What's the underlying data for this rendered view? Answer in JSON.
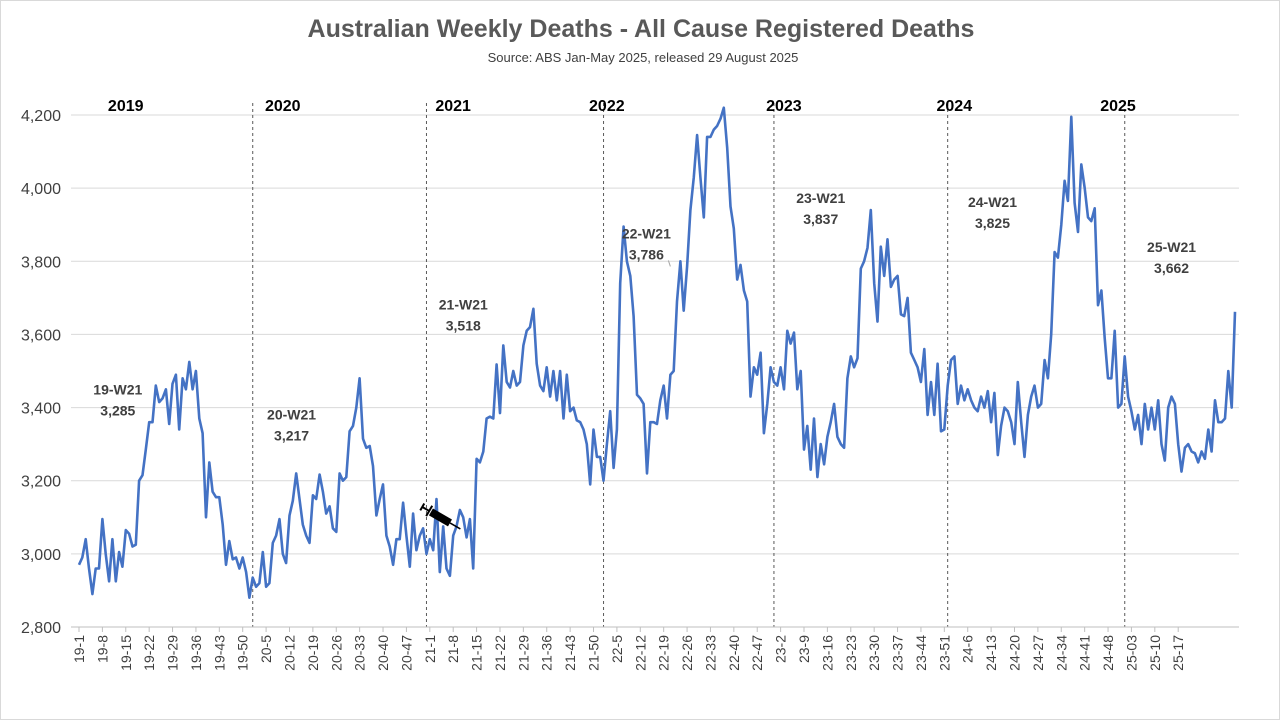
{
  "chart_data": {
    "type": "line",
    "title": "Australian Weekly Deaths - All Cause Registered Deaths",
    "subtitle": "Source: ABS Jan-May 2025, released 29 August 2025",
    "xlabel": "",
    "ylabel": "",
    "ylim": [
      2800,
      4200
    ],
    "yticks": [
      2800,
      3000,
      3200,
      3400,
      3600,
      3800,
      4000,
      4200
    ],
    "ytick_labels": [
      "2,800",
      "3,000",
      "3,200",
      "3,400",
      "3,600",
      "3,800",
      "4,000",
      "4,200"
    ],
    "grid": true,
    "line_color": "#4472C4",
    "divider_color": "#595959",
    "grid_color": "#d9d9d9",
    "x_tick_labels": [
      {
        "index": 0,
        "label": "19-1"
      },
      {
        "index": 7,
        "label": "19-8"
      },
      {
        "index": 14,
        "label": "19-15"
      },
      {
        "index": 21,
        "label": "19-22"
      },
      {
        "index": 28,
        "label": "19-29"
      },
      {
        "index": 35,
        "label": "19-36"
      },
      {
        "index": 42,
        "label": "19-43"
      },
      {
        "index": 49,
        "label": "19-50"
      },
      {
        "index": 56,
        "label": "20-5"
      },
      {
        "index": 63,
        "label": "20-12"
      },
      {
        "index": 70,
        "label": "20-19"
      },
      {
        "index": 77,
        "label": "20-26"
      },
      {
        "index": 84,
        "label": "20-33"
      },
      {
        "index": 91,
        "label": "20-40"
      },
      {
        "index": 98,
        "label": "20-47"
      },
      {
        "index": 105,
        "label": "21-1"
      },
      {
        "index": 112,
        "label": "21-8"
      },
      {
        "index": 119,
        "label": "21-15"
      },
      {
        "index": 126,
        "label": "21-22"
      },
      {
        "index": 133,
        "label": "21-29"
      },
      {
        "index": 140,
        "label": "21-36"
      },
      {
        "index": 147,
        "label": "21-43"
      },
      {
        "index": 154,
        "label": "21-50"
      },
      {
        "index": 161,
        "label": "22-5"
      },
      {
        "index": 168,
        "label": "22-12"
      },
      {
        "index": 175,
        "label": "22-19"
      },
      {
        "index": 182,
        "label": "22-26"
      },
      {
        "index": 189,
        "label": "22-33"
      },
      {
        "index": 196,
        "label": "22-40"
      },
      {
        "index": 203,
        "label": "22-47"
      },
      {
        "index": 210,
        "label": "23-2"
      },
      {
        "index": 217,
        "label": "23-9"
      },
      {
        "index": 224,
        "label": "23-16"
      },
      {
        "index": 231,
        "label": "23-23"
      },
      {
        "index": 238,
        "label": "23-30"
      },
      {
        "index": 245,
        "label": "23-37"
      },
      {
        "index": 252,
        "label": "23-44"
      },
      {
        "index": 259,
        "label": "23-51"
      },
      {
        "index": 266,
        "label": "24-6"
      },
      {
        "index": 273,
        "label": "24-13"
      },
      {
        "index": 280,
        "label": "24-20"
      },
      {
        "index": 287,
        "label": "24-27"
      },
      {
        "index": 294,
        "label": "24-34"
      },
      {
        "index": 301,
        "label": "24-41"
      },
      {
        "index": 308,
        "label": "24-48"
      },
      {
        "index": 315,
        "label": "25-03"
      },
      {
        "index": 322,
        "label": "25-10"
      },
      {
        "index": 329,
        "label": "25-17"
      }
    ],
    "year_labels": [
      {
        "label": "2019",
        "index": 8
      },
      {
        "label": "2020",
        "index": 55
      },
      {
        "label": "2021",
        "index": 106
      },
      {
        "label": "2022",
        "index": 152
      },
      {
        "label": "2023",
        "index": 205
      },
      {
        "label": "2024",
        "index": 256
      },
      {
        "label": "2025",
        "index": 305
      }
    ],
    "year_dividers": [
      52,
      104,
      157,
      208,
      260,
      313
    ],
    "annotations": [
      {
        "week": "19-W21",
        "value": "3,285",
        "index": 20,
        "y": 3285
      },
      {
        "week": "20-W21",
        "value": "3,217",
        "index": 72,
        "y": 3217
      },
      {
        "week": "21-W21",
        "value": "3,518",
        "index": 124,
        "y": 3518
      },
      {
        "week": "22-W21",
        "value": "3,786",
        "index": 177,
        "y": 3786
      },
      {
        "week": "23-W21",
        "value": "3,837",
        "index": 228,
        "y": 3837
      },
      {
        "week": "24-W21",
        "value": "3,825",
        "index": 280,
        "y": 3825
      },
      {
        "week": "25-W21",
        "value": "3,662",
        "index": 333,
        "y": 3662
      }
    ],
    "vaccine_marker_index": 110,
    "values": [
      2970,
      2990,
      3040,
      2960,
      2890,
      2960,
      2960,
      3095,
      3000,
      2925,
      3040,
      2925,
      3005,
      2965,
      3065,
      3055,
      3020,
      3025,
      3200,
      3215,
      3285,
      3360,
      3360,
      3460,
      3415,
      3425,
      3450,
      3355,
      3465,
      3490,
      3340,
      3480,
      3450,
      3525,
      3450,
      3500,
      3370,
      3330,
      3100,
      3250,
      3170,
      3155,
      3155,
      3080,
      2970,
      3035,
      2985,
      2990,
      2960,
      2990,
      2950,
      2880,
      2935,
      2910,
      2920,
      3005,
      2910,
      2920,
      3030,
      3050,
      3095,
      3000,
      2975,
      3105,
      3145,
      3220,
      3150,
      3080,
      3050,
      3030,
      3160,
      3150,
      3217,
      3170,
      3110,
      3130,
      3070,
      3060,
      3220,
      3200,
      3210,
      3335,
      3350,
      3400,
      3480,
      3315,
      3290,
      3295,
      3240,
      3105,
      3150,
      3190,
      3050,
      3020,
      2970,
      3040,
      3040,
      3140,
      3050,
      2965,
      3110,
      3010,
      3050,
      3070,
      3000,
      3040,
      3010,
      3150,
      2950,
      3075,
      2960,
      2940,
      3050,
      3075,
      3120,
      3100,
      3045,
      3095,
      2960,
      3260,
      3250,
      3280,
      3370,
      3375,
      3370,
      3518,
      3385,
      3570,
      3470,
      3455,
      3500,
      3460,
      3470,
      3570,
      3610,
      3620,
      3670,
      3520,
      3460,
      3445,
      3510,
      3430,
      3500,
      3420,
      3500,
      3370,
      3490,
      3390,
      3400,
      3365,
      3360,
      3340,
      3300,
      3190,
      3340,
      3265,
      3265,
      3200,
      3300,
      3390,
      3235,
      3340,
      3740,
      3895,
      3800,
      3760,
      3650,
      3435,
      3425,
      3410,
      3220,
      3360,
      3360,
      3355,
      3420,
      3460,
      3370,
      3490,
      3500,
      3690,
      3800,
      3665,
      3786,
      3940,
      4030,
      4145,
      4030,
      3920,
      4140,
      4140,
      4160,
      4170,
      4190,
      4220,
      4110,
      3950,
      3890,
      3750,
      3790,
      3720,
      3690,
      3430,
      3510,
      3490,
      3550,
      3330,
      3410,
      3510,
      3470,
      3460,
      3510,
      3450,
      3610,
      3575,
      3605,
      3450,
      3500,
      3285,
      3350,
      3230,
      3370,
      3210,
      3300,
      3245,
      3320,
      3360,
      3410,
      3320,
      3300,
      3290,
      3480,
      3540,
      3510,
      3535,
      3780,
      3800,
      3837,
      3940,
      3740,
      3635,
      3840,
      3760,
      3860,
      3730,
      3750,
      3760,
      3655,
      3650,
      3700,
      3550,
      3530,
      3510,
      3470,
      3560,
      3380,
      3470,
      3380,
      3520,
      3335,
      3340,
      3460,
      3530,
      3540,
      3410,
      3460,
      3420,
      3450,
      3420,
      3400,
      3390,
      3430,
      3400,
      3445,
      3360,
      3440,
      3270,
      3350,
      3400,
      3390,
      3360,
      3300,
      3470,
      3360,
      3265,
      3380,
      3430,
      3460,
      3400,
      3410,
      3530,
      3480,
      3600,
      3825,
      3810,
      3900,
      4020,
      3965,
      4195,
      3960,
      3880,
      4065,
      4000,
      3920,
      3910,
      3945,
      3680,
      3720,
      3590,
      3480,
      3480,
      3610,
      3400,
      3410,
      3540,
      3430,
      3390,
      3340,
      3380,
      3300,
      3410,
      3340,
      3400,
      3340,
      3420,
      3300,
      3255,
      3400,
      3430,
      3410,
      3300,
      3225,
      3290,
      3300,
      3280,
      3275,
      3250,
      3280,
      3260,
      3340,
      3280,
      3420,
      3360,
      3360,
      3370,
      3500,
      3400,
      3662
    ]
  }
}
